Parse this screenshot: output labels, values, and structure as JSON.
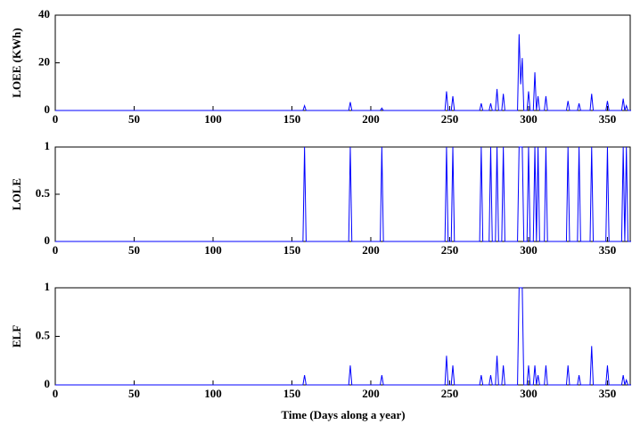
{
  "chart_data": [
    {
      "type": "line",
      "ylabel": "LOEE (KWh)",
      "x": [
        0,
        157,
        158,
        159,
        186,
        187,
        188,
        206,
        207,
        208,
        247,
        248,
        249,
        251,
        252,
        253,
        269,
        270,
        271,
        275,
        276,
        277,
        279,
        280,
        281,
        283,
        284,
        285,
        293,
        294,
        295,
        296,
        297,
        299,
        300,
        301,
        303,
        304,
        305,
        306,
        307,
        310,
        311,
        312,
        324,
        325,
        326,
        331,
        332,
        333,
        339,
        340,
        341,
        349,
        350,
        351,
        359,
        360,
        361,
        362,
        363,
        365
      ],
      "color": "#0000ff",
      "values": [
        0,
        0,
        2,
        0,
        0,
        3.5,
        0,
        0,
        1,
        0,
        0,
        8,
        0,
        0,
        6,
        0,
        0,
        3,
        0,
        0,
        3,
        0,
        0,
        9,
        0,
        0,
        7,
        0,
        0,
        32,
        11,
        22,
        0,
        0,
        8,
        0,
        0,
        16,
        0,
        6,
        0,
        0,
        6,
        0,
        0,
        4,
        0,
        0,
        3,
        0,
        0,
        7,
        0,
        0,
        4,
        0,
        0,
        5,
        0,
        2,
        0,
        0
      ],
      "xlim": [
        0,
        365
      ],
      "xticks": [
        0,
        50,
        100,
        150,
        200,
        250,
        300,
        350
      ],
      "ylim": [
        0,
        40
      ],
      "yticks": [
        0,
        20,
        40
      ]
    },
    {
      "type": "line",
      "ylabel": "LOLE",
      "x": [
        0,
        157,
        158,
        159,
        186,
        187,
        188,
        206,
        207,
        208,
        247,
        248,
        249,
        251,
        252,
        253,
        269,
        270,
        271,
        275,
        276,
        277,
        279,
        280,
        281,
        283,
        284,
        285,
        293,
        294,
        295,
        296,
        297,
        299,
        300,
        301,
        303,
        304,
        305,
        306,
        307,
        310,
        311,
        312,
        324,
        325,
        326,
        331,
        332,
        333,
        339,
        340,
        341,
        349,
        350,
        351,
        359,
        360,
        361,
        362,
        363,
        365
      ],
      "color": "#0000ff",
      "values": [
        0,
        0,
        1,
        0,
        0,
        1,
        0,
        0,
        1,
        0,
        0,
        1,
        0,
        0,
        1,
        0,
        0,
        1,
        0,
        0,
        1,
        0,
        0,
        1,
        0,
        0,
        1,
        0,
        0,
        1,
        1,
        1,
        0,
        0,
        1,
        0,
        0,
        1,
        0,
        1,
        0,
        0,
        1,
        0,
        0,
        1,
        0,
        0,
        1,
        0,
        0,
        1,
        0,
        0,
        1,
        0,
        0,
        1,
        0,
        1,
        0,
        0
      ],
      "xlim": [
        0,
        365
      ],
      "xticks": [
        0,
        50,
        100,
        150,
        200,
        250,
        300,
        350
      ],
      "ylim": [
        0,
        1
      ],
      "yticks": [
        0,
        0.5,
        1
      ]
    },
    {
      "type": "line",
      "ylabel": "ELF",
      "xlabel": "Time (Days along a year)",
      "x": [
        0,
        157,
        158,
        159,
        186,
        187,
        188,
        206,
        207,
        208,
        247,
        248,
        249,
        251,
        252,
        253,
        269,
        270,
        271,
        275,
        276,
        277,
        279,
        280,
        281,
        283,
        284,
        285,
        293,
        294,
        295,
        296,
        297,
        299,
        300,
        301,
        303,
        304,
        305,
        306,
        307,
        310,
        311,
        312,
        324,
        325,
        326,
        331,
        332,
        333,
        339,
        340,
        341,
        349,
        350,
        351,
        359,
        360,
        361,
        362,
        363,
        365
      ],
      "color": "#0000ff",
      "values": [
        0,
        0,
        0.1,
        0,
        0,
        0.2,
        0,
        0,
        0.1,
        0,
        0,
        0.3,
        0,
        0,
        0.2,
        0,
        0,
        0.1,
        0,
        0,
        0.1,
        0,
        0,
        0.3,
        0,
        0,
        0.2,
        0,
        0,
        1,
        1,
        1,
        0,
        0,
        0.2,
        0,
        0,
        0.2,
        0,
        0.1,
        0,
        0,
        0.2,
        0,
        0,
        0.2,
        0,
        0,
        0.1,
        0,
        0,
        0.4,
        0,
        0,
        0.2,
        0,
        0,
        0.1,
        0,
        0.05,
        0,
        0
      ],
      "xlim": [
        0,
        365
      ],
      "xticks": [
        0,
        50,
        100,
        150,
        200,
        250,
        300,
        350
      ],
      "ylim": [
        0,
        1
      ],
      "yticks": [
        0,
        0.5,
        1
      ]
    }
  ]
}
